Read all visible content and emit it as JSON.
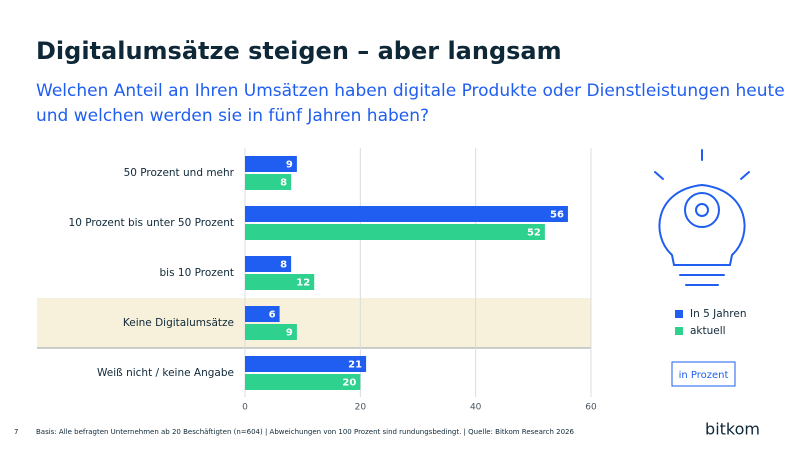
{
  "chart_data": {
    "type": "barh",
    "title": "Digitalumsätze steigen – aber langsam",
    "subtitle": [
      "Welchen Anteil an Ihren Umsätzen haben digitale Produkte oder Dienstleistungen heute",
      "und welchen werden sie in fünf Jahren haben?"
    ],
    "categories": [
      "50 Prozent und mehr",
      "10 Prozent bis unter 50 Prozent",
      "bis 10 Prozent",
      "Keine Digitalumsätze",
      "Weiß nicht / keine Angabe"
    ],
    "series": [
      {
        "name": "In 5 Jahren",
        "color": "#1f5ef0",
        "values": [
          9,
          56,
          8,
          6,
          21
        ]
      },
      {
        "name": "aktuell",
        "color": "#2ed18e",
        "values": [
          8,
          52,
          12,
          9,
          20
        ]
      }
    ],
    "xlim": [
      0,
      60
    ],
    "xticks": [
      0,
      20,
      40,
      60
    ],
    "grid": true,
    "unit_note": "in Prozent"
  },
  "footer": {
    "page": "7",
    "source": "Basis: Alle befragten Unternehmen ab 20 Beschäftigten (n=604) | Abweichungen von 100 Prozent sind rundungsbedingt. | Quelle: Bitkom Research 2026",
    "logo": "bitkom"
  }
}
